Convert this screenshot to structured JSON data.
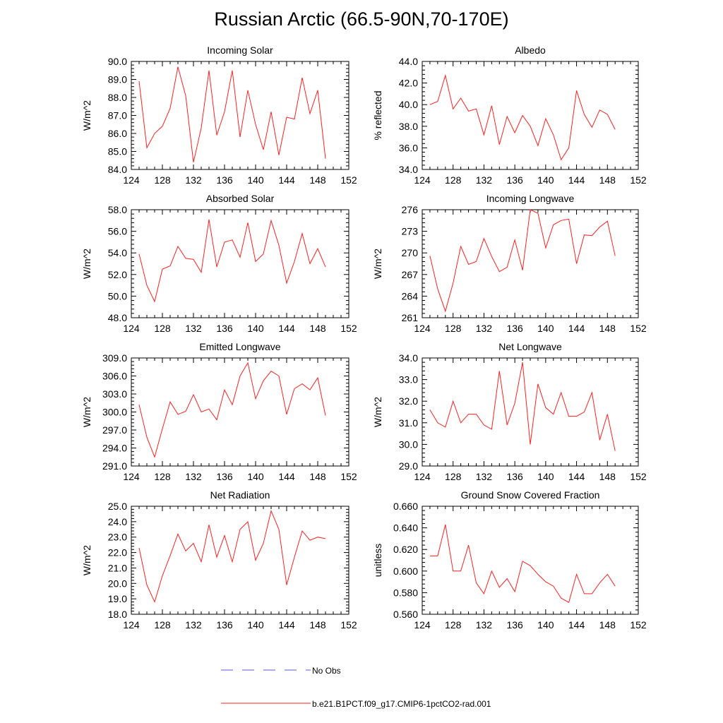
{
  "title": "Russian Arctic (66.5-90N,70-170E)",
  "legend": {
    "items": [
      {
        "label": "No Obs",
        "color": "#5a5ad8",
        "style": "dashed"
      },
      {
        "label": "b.e21.B1PCT.f09_g17.CMIP6-1pctCO2-rad.001",
        "color": "#ff2020",
        "style": "solid"
      }
    ]
  },
  "chart_data": [
    {
      "type": "line",
      "title": "Incoming Solar",
      "xlabel": "",
      "ylabel": "W/m^2",
      "xlim": [
        124,
        152
      ],
      "ylim": [
        84.0,
        90.0
      ],
      "xticks": [
        "124",
        "128",
        "132",
        "136",
        "140",
        "144",
        "148",
        "152"
      ],
      "yticks": [
        "84.0",
        "85.0",
        "86.0",
        "87.0",
        "88.0",
        "89.0",
        "90.0"
      ],
      "color": "#ff2020",
      "x": [
        125,
        126,
        127,
        128,
        129,
        130,
        131,
        132,
        133,
        134,
        135,
        136,
        137,
        138,
        139,
        140,
        141,
        142,
        143,
        144,
        145,
        146,
        147,
        148,
        149
      ],
      "y": [
        88.9,
        85.2,
        86.0,
        86.4,
        87.4,
        89.7,
        88.1,
        84.4,
        86.3,
        89.5,
        85.9,
        87.2,
        89.5,
        85.8,
        88.4,
        86.5,
        85.1,
        87.2,
        84.8,
        86.9,
        86.8,
        89.1,
        87.1,
        88.4,
        84.6
      ]
    },
    {
      "type": "line",
      "title": "Albedo",
      "xlabel": "",
      "ylabel": "% reflected",
      "xlim": [
        124,
        152
      ],
      "ylim": [
        34.0,
        44.0
      ],
      "xticks": [
        "124",
        "128",
        "132",
        "136",
        "140",
        "144",
        "148",
        "152"
      ],
      "yticks": [
        "34.0",
        "36.0",
        "38.0",
        "40.0",
        "42.0",
        "44.0"
      ],
      "color": "#ff2020",
      "x": [
        125,
        126,
        127,
        128,
        129,
        130,
        131,
        132,
        133,
        134,
        135,
        136,
        137,
        138,
        139,
        140,
        141,
        142,
        143,
        144,
        145,
        146,
        147,
        148,
        149
      ],
      "y": [
        40.0,
        40.3,
        42.7,
        39.6,
        40.6,
        39.4,
        39.6,
        37.2,
        39.9,
        36.3,
        38.9,
        37.4,
        39.0,
        38.0,
        36.2,
        38.7,
        37.2,
        34.9,
        36.0,
        41.3,
        39.1,
        37.9,
        39.5,
        39.1,
        37.7
      ]
    },
    {
      "type": "line",
      "title": "Absorbed Solar",
      "xlabel": "",
      "ylabel": "W/m^2",
      "xlim": [
        124,
        152
      ],
      "ylim": [
        48.0,
        58.0
      ],
      "xticks": [
        "124",
        "128",
        "132",
        "136",
        "140",
        "144",
        "148",
        "152"
      ],
      "yticks": [
        "48.0",
        "50.0",
        "52.0",
        "54.0",
        "56.0",
        "58.0"
      ],
      "color": "#ff2020",
      "x": [
        125,
        126,
        127,
        128,
        129,
        130,
        131,
        132,
        133,
        134,
        135,
        136,
        137,
        138,
        139,
        140,
        141,
        142,
        143,
        144,
        145,
        146,
        147,
        148,
        149
      ],
      "y": [
        53.9,
        51.0,
        49.5,
        52.5,
        52.8,
        54.6,
        53.5,
        53.4,
        52.2,
        57.1,
        52.7,
        55.0,
        55.2,
        53.6,
        56.8,
        53.2,
        53.9,
        57.0,
        54.7,
        51.2,
        53.2,
        55.8,
        53.0,
        54.4,
        52.7
      ]
    },
    {
      "type": "line",
      "title": "Incoming Longwave",
      "xlabel": "",
      "ylabel": "W/m^2",
      "xlim": [
        124,
        152
      ],
      "ylim": [
        261,
        276
      ],
      "xticks": [
        "124",
        "128",
        "132",
        "136",
        "140",
        "144",
        "148",
        "152"
      ],
      "yticks": [
        "261",
        "264",
        "267",
        "270",
        "273",
        "276"
      ],
      "color": "#ff2020",
      "x": [
        125,
        126,
        127,
        128,
        129,
        130,
        131,
        132,
        133,
        134,
        135,
        136,
        137,
        138,
        139,
        140,
        141,
        142,
        143,
        144,
        145,
        146,
        147,
        148,
        149
      ],
      "y": [
        269.6,
        265.0,
        261.9,
        265.8,
        270.9,
        268.4,
        268.8,
        272.0,
        269.5,
        267.4,
        268.0,
        271.8,
        267.6,
        276.0,
        275.5,
        270.7,
        273.9,
        274.5,
        274.7,
        268.5,
        272.5,
        272.4,
        273.6,
        274.4,
        269.6
      ]
    },
    {
      "type": "line",
      "title": "Emitted Longwave",
      "xlabel": "",
      "ylabel": "W/m^2",
      "xlim": [
        124,
        152
      ],
      "ylim": [
        291.0,
        309.0
      ],
      "xticks": [
        "124",
        "128",
        "132",
        "136",
        "140",
        "144",
        "148",
        "152"
      ],
      "yticks": [
        "291.0",
        "294.0",
        "297.0",
        "300.0",
        "303.0",
        "306.0",
        "309.0"
      ],
      "color": "#ff2020",
      "x": [
        125,
        126,
        127,
        128,
        129,
        130,
        131,
        132,
        133,
        134,
        135,
        136,
        137,
        138,
        139,
        140,
        141,
        142,
        143,
        144,
        145,
        146,
        147,
        148,
        149
      ],
      "y": [
        301.2,
        295.8,
        292.5,
        297.2,
        301.7,
        299.6,
        300.1,
        302.9,
        300.0,
        300.5,
        298.7,
        303.7,
        301.2,
        306.0,
        308.2,
        302.2,
        305.2,
        306.8,
        306.0,
        299.6,
        303.9,
        304.7,
        303.7,
        305.7,
        299.4
      ]
    },
    {
      "type": "line",
      "title": "Net Longwave",
      "xlabel": "",
      "ylabel": "W/m^2",
      "xlim": [
        124,
        152
      ],
      "ylim": [
        29.0,
        34.0
      ],
      "xticks": [
        "124",
        "128",
        "132",
        "136",
        "140",
        "144",
        "148",
        "152"
      ],
      "yticks": [
        "29.0",
        "30.0",
        "31.0",
        "32.0",
        "33.0",
        "34.0"
      ],
      "color": "#ff2020",
      "x": [
        125,
        126,
        127,
        128,
        129,
        130,
        131,
        132,
        133,
        134,
        135,
        136,
        137,
        138,
        139,
        140,
        141,
        142,
        143,
        144,
        145,
        146,
        147,
        148,
        149
      ],
      "y": [
        31.6,
        31.0,
        30.8,
        32.0,
        31.0,
        31.4,
        31.4,
        30.9,
        30.7,
        33.4,
        30.9,
        31.9,
        33.8,
        30.0,
        32.8,
        31.7,
        31.4,
        32.4,
        31.3,
        31.3,
        31.5,
        32.4,
        30.2,
        31.4,
        29.7
      ]
    },
    {
      "type": "line",
      "title": "Net Radiation",
      "xlabel": "",
      "ylabel": "W/m^2",
      "xlim": [
        124,
        152
      ],
      "ylim": [
        18.0,
        25.0
      ],
      "xticks": [
        "124",
        "128",
        "132",
        "136",
        "140",
        "144",
        "148",
        "152"
      ],
      "yticks": [
        "18.0",
        "19.0",
        "20.0",
        "21.0",
        "22.0",
        "23.0",
        "24.0",
        "25.0"
      ],
      "color": "#ff2020",
      "x": [
        125,
        126,
        127,
        128,
        129,
        130,
        131,
        132,
        133,
        134,
        135,
        136,
        137,
        138,
        139,
        140,
        141,
        142,
        143,
        144,
        145,
        146,
        147,
        148,
        149
      ],
      "y": [
        22.3,
        19.9,
        18.8,
        20.5,
        21.8,
        23.2,
        22.1,
        22.6,
        21.4,
        23.8,
        21.7,
        23.1,
        21.4,
        23.5,
        24.0,
        21.5,
        22.6,
        24.7,
        23.5,
        19.9,
        21.7,
        23.4,
        22.8,
        23.0,
        22.9
      ]
    },
    {
      "type": "line",
      "title": "Ground Snow Covered Fraction",
      "xlabel": "",
      "ylabel": "unitless",
      "xlim": [
        124,
        152
      ],
      "ylim": [
        0.56,
        0.66
      ],
      "xticks": [
        "124",
        "128",
        "132",
        "136",
        "140",
        "144",
        "148",
        "152"
      ],
      "yticks": [
        "0.560",
        "0.580",
        "0.600",
        "0.620",
        "0.640",
        "0.660"
      ],
      "color": "#ff2020",
      "x": [
        125,
        126,
        127,
        128,
        129,
        130,
        131,
        132,
        133,
        134,
        135,
        136,
        137,
        138,
        139,
        140,
        141,
        142,
        143,
        144,
        145,
        146,
        147,
        148,
        149
      ],
      "y": [
        0.614,
        0.614,
        0.643,
        0.6,
        0.6,
        0.624,
        0.589,
        0.579,
        0.6,
        0.585,
        0.593,
        0.581,
        0.609,
        0.605,
        0.597,
        0.59,
        0.586,
        0.575,
        0.571,
        0.597,
        0.579,
        0.579,
        0.589,
        0.597,
        0.586
      ]
    }
  ]
}
